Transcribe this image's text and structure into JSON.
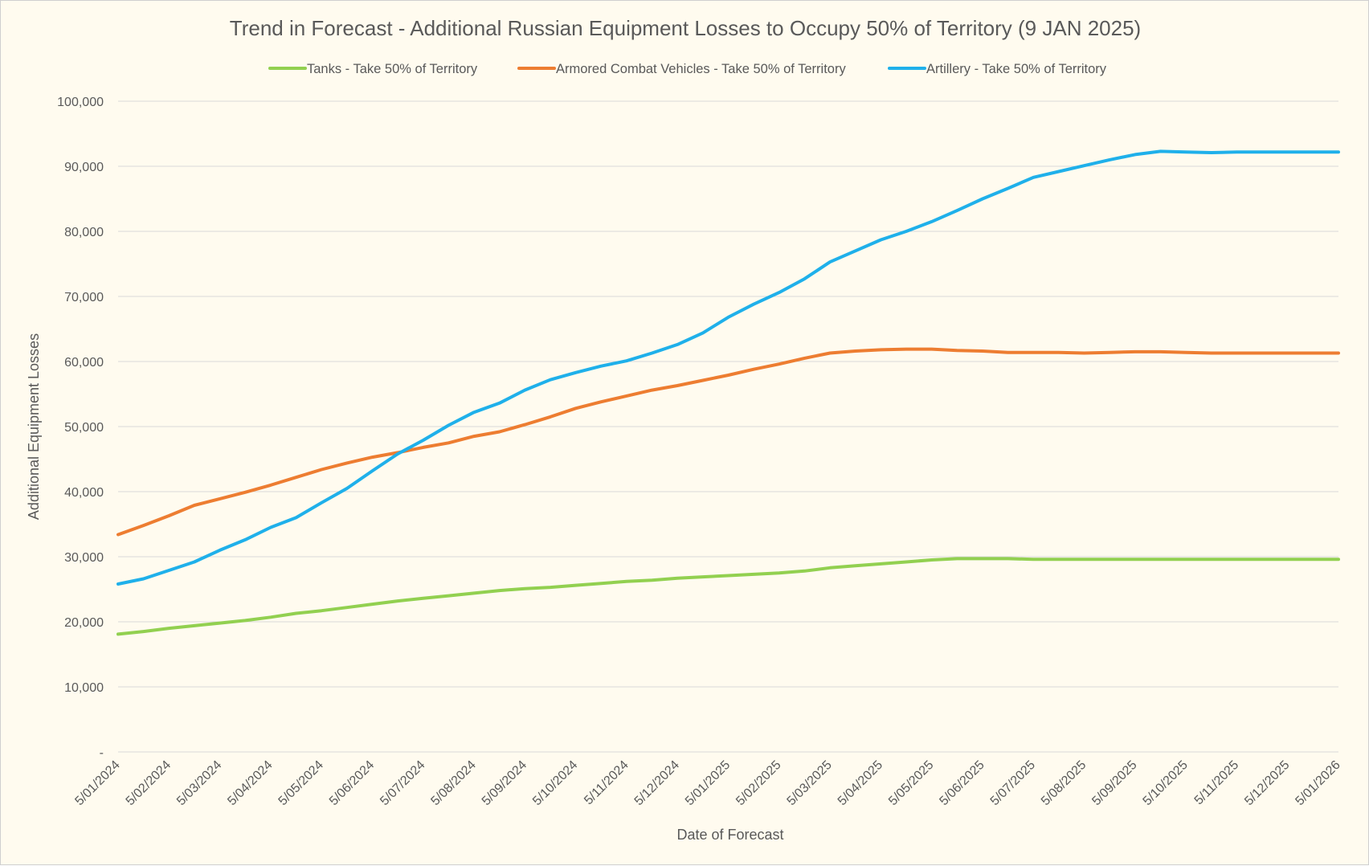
{
  "chart_data": {
    "type": "line",
    "title": "Trend in Forecast - Additional Russian Equipment Losses to Occupy 50% of Territory (9 JAN 2025)",
    "xlabel": "Date of Forecast",
    "ylabel": "Additional Equipment Losses",
    "ylim": [
      0,
      100000
    ],
    "y_ticks": [
      {
        "value": 0,
        "label": "-"
      },
      {
        "value": 10000,
        "label": "10,000"
      },
      {
        "value": 20000,
        "label": "20,000"
      },
      {
        "value": 30000,
        "label": "30,000"
      },
      {
        "value": 40000,
        "label": "40,000"
      },
      {
        "value": 50000,
        "label": "50,000"
      },
      {
        "value": 60000,
        "label": "60,000"
      },
      {
        "value": 70000,
        "label": "70,000"
      },
      {
        "value": 80000,
        "label": "80,000"
      },
      {
        "value": 90000,
        "label": "90,000"
      },
      {
        "value": 100000,
        "label": "100,000"
      }
    ],
    "x_tick_labels": [
      "5/01/2024",
      "5/02/2024",
      "5/03/2024",
      "5/04/2024",
      "5/05/2024",
      "5/06/2024",
      "5/07/2024",
      "5/08/2024",
      "5/09/2024",
      "5/10/2024",
      "5/11/2024",
      "5/12/2024",
      "5/01/2025",
      "5/02/2025",
      "5/03/2025",
      "5/04/2025",
      "5/05/2025",
      "5/06/2025",
      "5/07/2025",
      "5/08/2025",
      "5/09/2025",
      "5/10/2025",
      "5/11/2025",
      "5/12/2025",
      "5/01/2026"
    ],
    "grid": true,
    "legend_position": "top",
    "series": [
      {
        "name": "Tanks - Take 50% of Territory",
        "color": "#92d050",
        "points": [
          [
            0,
            18100
          ],
          [
            0.5,
            18500
          ],
          [
            1,
            19000
          ],
          [
            1.5,
            19400
          ],
          [
            2,
            19800
          ],
          [
            2.5,
            20200
          ],
          [
            3,
            20700
          ],
          [
            3.5,
            21300
          ],
          [
            4,
            21700
          ],
          [
            4.5,
            22200
          ],
          [
            5,
            22700
          ],
          [
            5.5,
            23200
          ],
          [
            6,
            23600
          ],
          [
            6.5,
            24000
          ],
          [
            7,
            24400
          ],
          [
            7.5,
            24800
          ],
          [
            8,
            25100
          ],
          [
            8.5,
            25300
          ],
          [
            9,
            25600
          ],
          [
            9.5,
            25900
          ],
          [
            10,
            26200
          ],
          [
            10.5,
            26400
          ],
          [
            11,
            26700
          ],
          [
            11.5,
            26900
          ],
          [
            12,
            27100
          ],
          [
            12.5,
            27300
          ],
          [
            13,
            27500
          ],
          [
            13.5,
            27800
          ],
          [
            14,
            28300
          ],
          [
            14.5,
            28600
          ],
          [
            15,
            28900
          ],
          [
            15.5,
            29200
          ],
          [
            16,
            29500
          ],
          [
            16.5,
            29700
          ],
          [
            17,
            29700
          ],
          [
            17.5,
            29700
          ],
          [
            18,
            29600
          ],
          [
            18.5,
            29600
          ],
          [
            19,
            29600
          ],
          [
            19.5,
            29600
          ],
          [
            20,
            29600
          ],
          [
            20.5,
            29600
          ],
          [
            21,
            29600
          ],
          [
            21.5,
            29600
          ],
          [
            22,
            29600
          ],
          [
            22.5,
            29600
          ],
          [
            23,
            29600
          ],
          [
            23.5,
            29600
          ],
          [
            24,
            29600
          ]
        ]
      },
      {
        "name": "Armored Combat Vehicles - Take 50% of Territory",
        "color": "#ed7d31",
        "points": [
          [
            0,
            33400
          ],
          [
            0.5,
            34800
          ],
          [
            1,
            36300
          ],
          [
            1.5,
            37900
          ],
          [
            2,
            38900
          ],
          [
            2.5,
            39900
          ],
          [
            3,
            41000
          ],
          [
            3.5,
            42200
          ],
          [
            4,
            43400
          ],
          [
            4.5,
            44400
          ],
          [
            5,
            45300
          ],
          [
            5.5,
            46000
          ],
          [
            6,
            46800
          ],
          [
            6.5,
            47500
          ],
          [
            7,
            48500
          ],
          [
            7.5,
            49200
          ],
          [
            8,
            50300
          ],
          [
            8.5,
            51500
          ],
          [
            9,
            52800
          ],
          [
            9.5,
            53800
          ],
          [
            10,
            54700
          ],
          [
            10.5,
            55600
          ],
          [
            11,
            56300
          ],
          [
            11.5,
            57100
          ],
          [
            12,
            57900
          ],
          [
            12.5,
            58800
          ],
          [
            13,
            59600
          ],
          [
            13.5,
            60500
          ],
          [
            14,
            61300
          ],
          [
            14.5,
            61600
          ],
          [
            15,
            61800
          ],
          [
            15.5,
            61900
          ],
          [
            16,
            61900
          ],
          [
            16.5,
            61700
          ],
          [
            17,
            61600
          ],
          [
            17.5,
            61400
          ],
          [
            18,
            61400
          ],
          [
            18.5,
            61400
          ],
          [
            19,
            61300
          ],
          [
            19.5,
            61400
          ],
          [
            20,
            61500
          ],
          [
            20.5,
            61500
          ],
          [
            21,
            61400
          ],
          [
            21.5,
            61300
          ],
          [
            22,
            61300
          ],
          [
            22.5,
            61300
          ],
          [
            23,
            61300
          ],
          [
            23.5,
            61300
          ],
          [
            24,
            61300
          ]
        ]
      },
      {
        "name": "Artillery - Take 50% of Territory",
        "color": "#1fb0ea",
        "points": [
          [
            0,
            25800
          ],
          [
            0.5,
            26600
          ],
          [
            1,
            27900
          ],
          [
            1.5,
            29200
          ],
          [
            2,
            31000
          ],
          [
            2.5,
            32600
          ],
          [
            3,
            34500
          ],
          [
            3.5,
            36000
          ],
          [
            4,
            38300
          ],
          [
            4.5,
            40500
          ],
          [
            5,
            43200
          ],
          [
            5.5,
            45800
          ],
          [
            6,
            47900
          ],
          [
            6.5,
            50200
          ],
          [
            7,
            52200
          ],
          [
            7.5,
            53600
          ],
          [
            8,
            55600
          ],
          [
            8.5,
            57200
          ],
          [
            9,
            58300
          ],
          [
            9.5,
            59300
          ],
          [
            10,
            60100
          ],
          [
            10.5,
            61300
          ],
          [
            11,
            62600
          ],
          [
            11.5,
            64400
          ],
          [
            12,
            66800
          ],
          [
            12.5,
            68800
          ],
          [
            13,
            70600
          ],
          [
            13.5,
            72700
          ],
          [
            14,
            75300
          ],
          [
            14.5,
            77000
          ],
          [
            15,
            78700
          ],
          [
            15.5,
            80000
          ],
          [
            16,
            81500
          ],
          [
            16.5,
            83200
          ],
          [
            17,
            85000
          ],
          [
            17.5,
            86600
          ],
          [
            18,
            88300
          ],
          [
            18.5,
            89200
          ],
          [
            19,
            90100
          ],
          [
            19.5,
            91000
          ],
          [
            20,
            91800
          ],
          [
            20.5,
            92300
          ],
          [
            21,
            92200
          ],
          [
            21.5,
            92100
          ],
          [
            22,
            92200
          ],
          [
            22.5,
            92200
          ],
          [
            23,
            92200
          ],
          [
            23.5,
            92200
          ],
          [
            24,
            92200
          ]
        ]
      }
    ]
  }
}
